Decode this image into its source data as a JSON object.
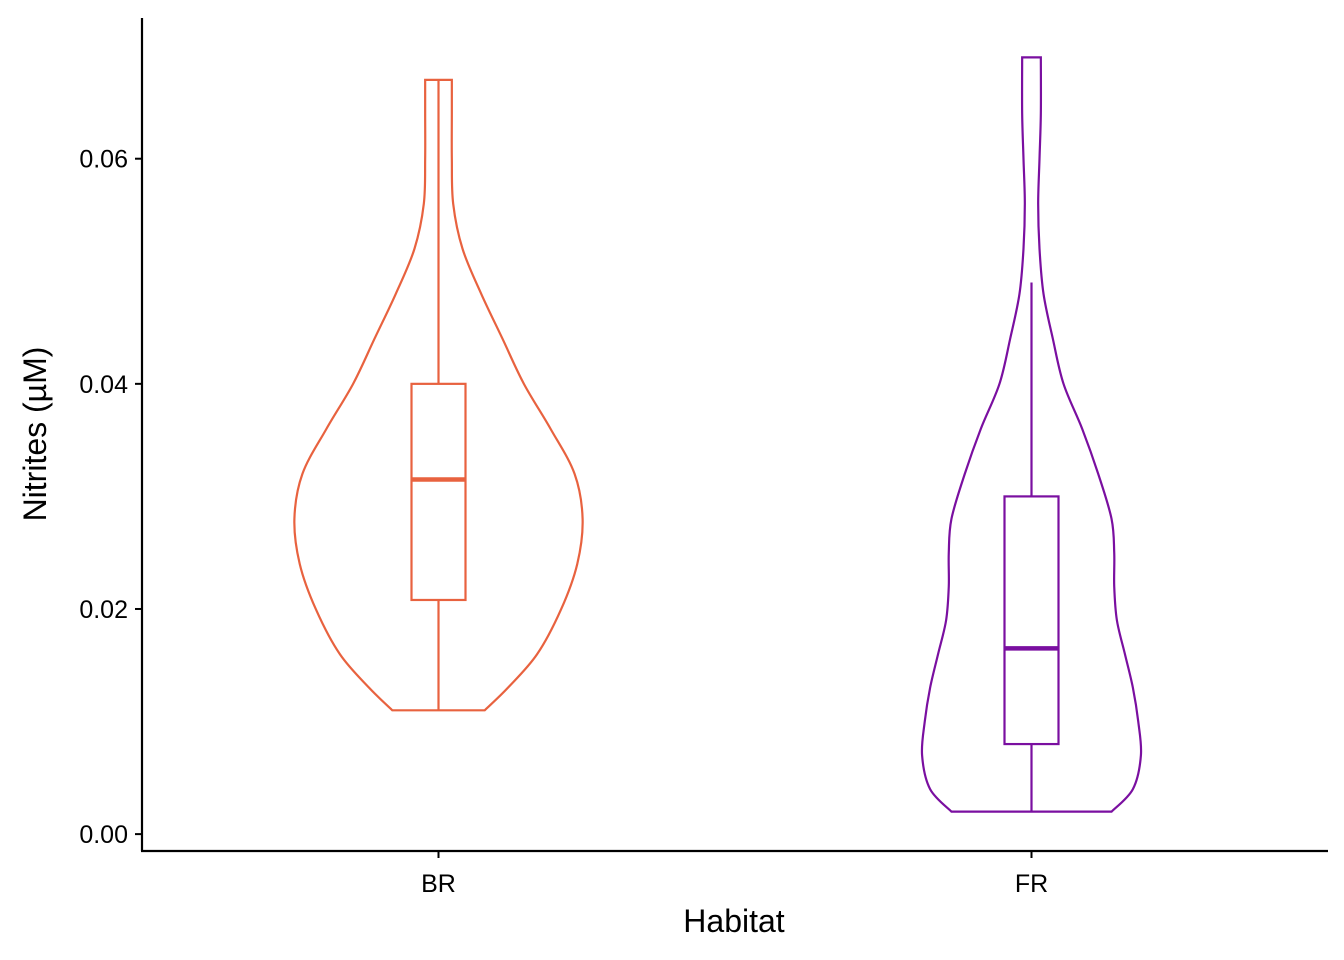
{
  "chart_data": {
    "type": "violin",
    "title": "",
    "xlabel": "Habitat",
    "ylabel": "Nitrites (µM)",
    "ylim": [
      -0.0015,
      0.0725
    ],
    "yticks": [
      0.0,
      0.02,
      0.04,
      0.06
    ],
    "ytick_labels": [
      "0.00",
      "0.02",
      "0.04",
      "0.06"
    ],
    "categories": [
      "BR",
      "FR"
    ],
    "grid": false,
    "legend": "none",
    "series": [
      {
        "category": "BR",
        "color": "#E8623F",
        "min": 0.011,
        "q1": 0.0208,
        "median": 0.0315,
        "q3": 0.04,
        "max": 0.067,
        "whisker_low": 0.011,
        "whisker_high": 0.067,
        "violin_profile": [
          [
            0.011,
            0.173
          ],
          [
            0.013,
            0.26
          ],
          [
            0.016,
            0.37
          ],
          [
            0.02,
            0.46
          ],
          [
            0.024,
            0.52
          ],
          [
            0.028,
            0.54
          ],
          [
            0.032,
            0.51
          ],
          [
            0.036,
            0.42
          ],
          [
            0.04,
            0.32
          ],
          [
            0.044,
            0.24
          ],
          [
            0.048,
            0.16
          ],
          [
            0.052,
            0.09
          ],
          [
            0.056,
            0.055
          ],
          [
            0.06,
            0.05
          ],
          [
            0.064,
            0.05
          ],
          [
            0.067,
            0.05
          ]
        ]
      },
      {
        "category": "FR",
        "color": "#7A0FA0",
        "min": 0.002,
        "q1": 0.008,
        "median": 0.0165,
        "q3": 0.03,
        "max": 0.069,
        "whisker_low": 0.002,
        "whisker_high": 0.049,
        "violin_profile": [
          [
            0.002,
            0.3
          ],
          [
            0.004,
            0.38
          ],
          [
            0.007,
            0.41
          ],
          [
            0.01,
            0.4
          ],
          [
            0.013,
            0.38
          ],
          [
            0.016,
            0.35
          ],
          [
            0.019,
            0.32
          ],
          [
            0.022,
            0.31
          ],
          [
            0.025,
            0.31
          ],
          [
            0.028,
            0.3
          ],
          [
            0.032,
            0.25
          ],
          [
            0.036,
            0.19
          ],
          [
            0.04,
            0.12
          ],
          [
            0.044,
            0.08
          ],
          [
            0.048,
            0.045
          ],
          [
            0.052,
            0.03
          ],
          [
            0.056,
            0.025
          ],
          [
            0.06,
            0.03
          ],
          [
            0.064,
            0.035
          ],
          [
            0.069,
            0.035
          ]
        ]
      }
    ]
  }
}
